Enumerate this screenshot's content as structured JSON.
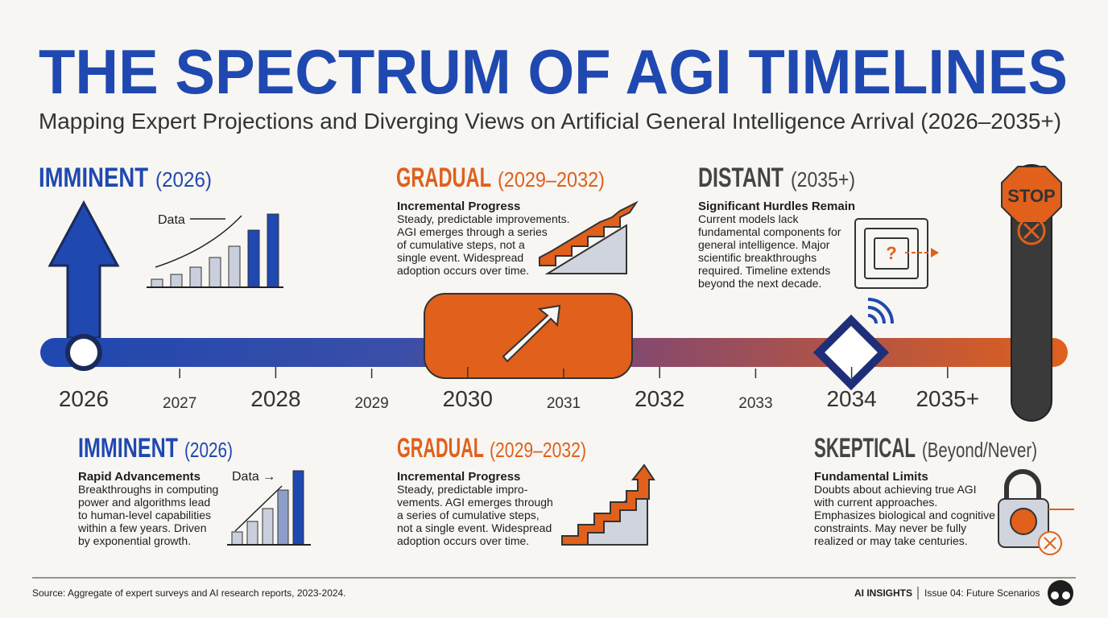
{
  "header": {
    "title": "THE SPECTRUM OF AGI TIMELINES",
    "subtitle": "Mapping Expert Projections and Diverging Views on Artificial General Intelligence Arrival (2026–2035+)"
  },
  "top_panels": [
    {
      "heading": "IMMINENT",
      "range": "(2026)",
      "chart_label": "Data"
    },
    {
      "heading": "GRADUAL",
      "range": "(2029–2032)",
      "subheading": "Incremental Progress",
      "body": [
        "Steady, predictable improvements.",
        "AGI emerges through a series",
        "of cumulative steps, not a",
        "single event. Widespread",
        "adoption occurs over time."
      ]
    },
    {
      "heading": "DISTANT",
      "range": "(2035+)",
      "subheading": "Significant Hurdles Remain",
      "body": [
        "Current models lack",
        "fundamental components for",
        "general intelligence. Major",
        "scientific breakthroughs",
        "required. Timeline extends",
        "beyond the next decade."
      ]
    }
  ],
  "stop_sign": "STOP",
  "timeline": {
    "labels": [
      "2026",
      "2027",
      "2028",
      "2029",
      "2030",
      "2031",
      "2032",
      "2033",
      "2034",
      "2035+"
    ]
  },
  "bottom_panels": [
    {
      "heading": "IMMINENT",
      "range": "(2026)",
      "subheading": "Rapid Advancements",
      "chart_label": "Data →",
      "body": [
        "Breakthroughs in computing",
        "power and algorithms lead",
        "to human-level capabilities",
        "within a few years. Driven",
        "by exponential growth."
      ]
    },
    {
      "heading": "GRADUAL",
      "range": "(2029–2032)",
      "subheading": "Incremental Progress",
      "body": [
        "Steady, predictable impro-",
        "vements. AGI emerges through",
        "a series of cumulative steps,",
        "not a single event. Widespread",
        "adoption occurs over time."
      ]
    },
    {
      "heading": "SKEPTICAL",
      "range": "(Beyond/Never)",
      "subheading": "Fundamental Limits",
      "body": [
        "Doubts about achieving true AGI",
        "with current approaches.",
        "Emphasizes biological and cognitive",
        "constraints. May never be fully",
        "realized or may take centuries."
      ]
    }
  ],
  "footer": {
    "source": "Source: Aggregate of expert surveys and AI research reports, 2023-2024.",
    "brand": "AI INSIGHTS",
    "issue": "Issue 04: Future Scenarios"
  }
}
